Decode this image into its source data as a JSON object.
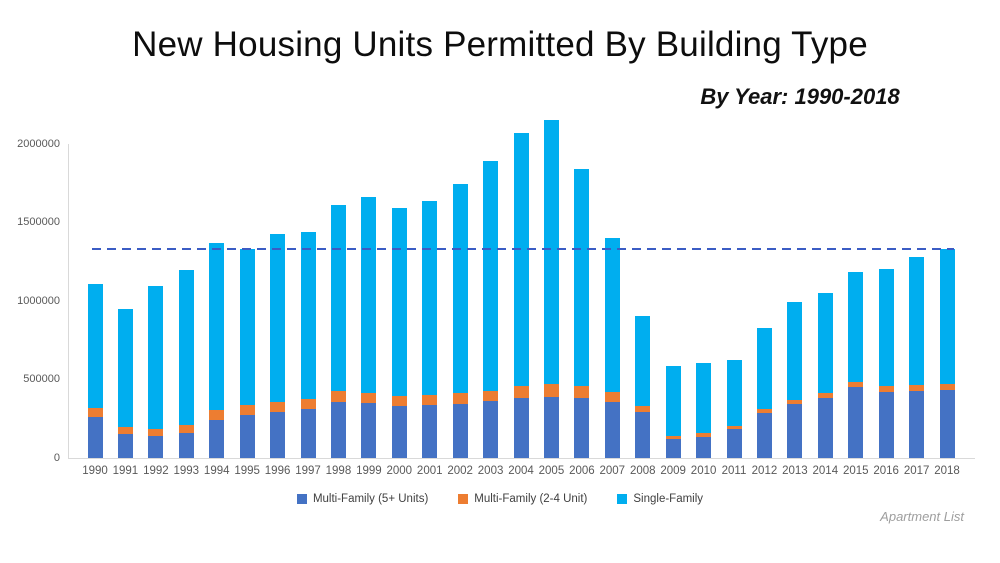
{
  "title": "New Housing Units Permitted By Building Type",
  "subtitle": "By Year: 1990-2018",
  "watermark": "Apartment List",
  "chart_data": {
    "type": "bar",
    "stacked": true,
    "title": "New Housing Units Permitted By Building Type",
    "subtitle": "By Year: 1990-2018",
    "gridlines": false,
    "legend_position": "bottom",
    "categories": [
      1990,
      1991,
      1992,
      1993,
      1994,
      1995,
      1996,
      1997,
      1998,
      1999,
      2000,
      2001,
      2002,
      2003,
      2004,
      2005,
      2006,
      2007,
      2008,
      2009,
      2010,
      2011,
      2012,
      2013,
      2014,
      2015,
      2016,
      2017,
      2018
    ],
    "series": [
      {
        "name": "Multi-Family (5+ Units)",
        "color": "#4472C4",
        "values": [
          263000,
          152000,
          138000,
          160000,
          241000,
          272000,
          290000,
          310000,
          356000,
          351000,
          329000,
          335000,
          347000,
          363000,
          380000,
          389000,
          384000,
          359000,
          295000,
          121000,
          135000,
          184000,
          285000,
          341000,
          382000,
          455000,
          421000,
          424000,
          436000
        ]
      },
      {
        "name": "Multi-Family (2-4 Unit)",
        "color": "#ED7D31",
        "values": [
          54000,
          43000,
          46000,
          52000,
          62000,
          64000,
          66000,
          68000,
          69000,
          65000,
          65000,
          66000,
          68000,
          66000,
          76000,
          84000,
          77000,
          60000,
          34000,
          21000,
          22000,
          22000,
          26000,
          29000,
          30000,
          32000,
          35000,
          38000,
          38000
        ]
      },
      {
        "name": "Single-Family",
        "color": "#00AEEF",
        "values": [
          794000,
          754000,
          911000,
          987000,
          1069000,
          997000,
          1070000,
          1062000,
          1188000,
          1247000,
          1198000,
          1236000,
          1333000,
          1461000,
          1613000,
          1682000,
          1378000,
          980000,
          576000,
          441000,
          447000,
          418000,
          519000,
          621000,
          640000,
          696000,
          751000,
          820000,
          855000
        ]
      }
    ],
    "y_axis": {
      "min": 0,
      "max": 2000000,
      "tick_interval": 500000,
      "ticks": [
        0,
        500000,
        1000000,
        1500000,
        2000000
      ],
      "tick_labels": [
        "0",
        "500000",
        "1000000",
        "1500000",
        "2000000"
      ]
    },
    "reference_line": {
      "value": 1330000,
      "style": "dashed",
      "color": "#3B5CC4"
    },
    "axis_colors": {
      "line": "#d9d9d9",
      "text": "#595959"
    }
  }
}
